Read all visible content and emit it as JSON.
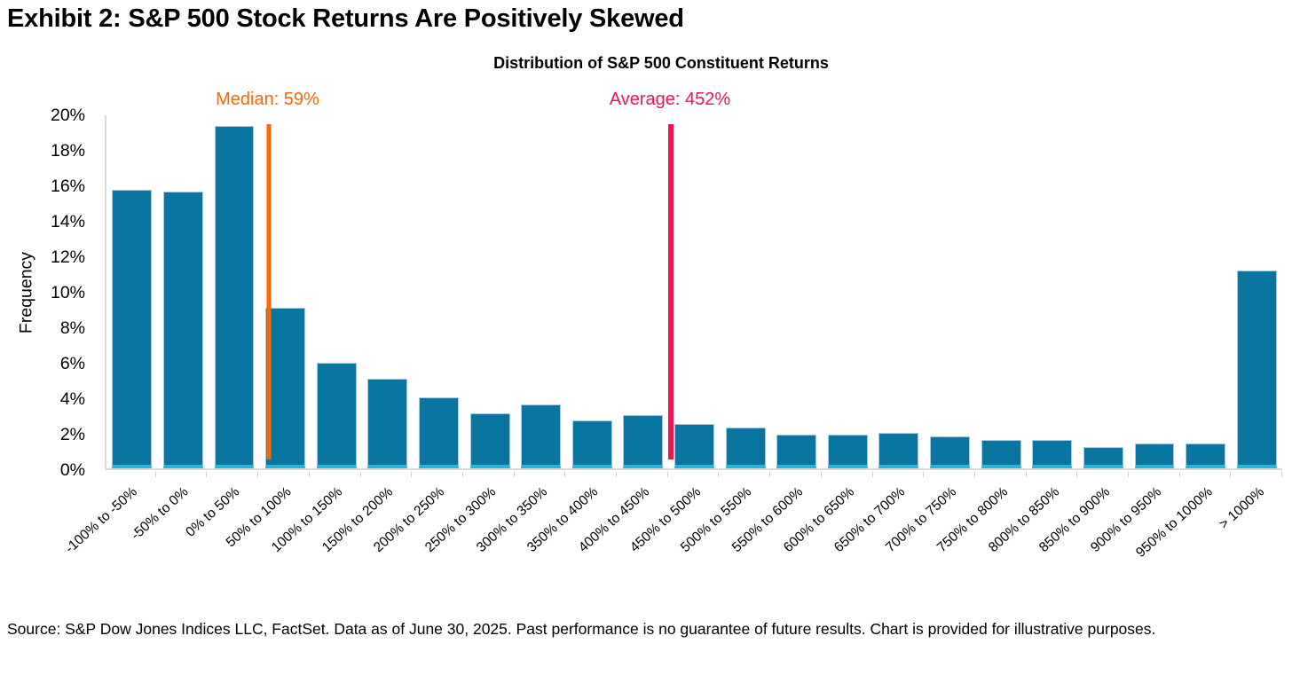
{
  "header": {
    "title": "Exhibit 2: S&P 500 Stock Returns Are Positively Skewed"
  },
  "chart_data": {
    "type": "bar",
    "title": "Distribution of S&P 500 Constituent Returns",
    "xlabel": "",
    "ylabel": "Frequency",
    "ylim": [
      0,
      20
    ],
    "ytick_step": 2,
    "ytick_suffix": "%",
    "grid": false,
    "legend": "none",
    "categories": [
      "-100% to -50%",
      "-50% to 0%",
      "0% to 50%",
      "50% to 100%",
      "100% to 150%",
      "150% to 200%",
      "200% to 250%",
      "250% to 300%",
      "300% to 350%",
      "350% to 400%",
      "400% to 450%",
      "450% to 500%",
      "500% to 550%",
      "550% to 600%",
      "600% to 650%",
      "650% to 700%",
      "700% to 750%",
      "750% to 800%",
      "800% to 850%",
      "850% to 900%",
      "900% to 950%",
      "950% to 1000%",
      "> 1000%"
    ],
    "values": [
      15.8,
      15.7,
      19.4,
      9.1,
      6.0,
      5.1,
      4.0,
      3.1,
      3.6,
      2.7,
      3.0,
      2.5,
      2.3,
      1.9,
      1.9,
      2.0,
      1.8,
      1.6,
      1.6,
      1.2,
      1.4,
      1.4,
      11.2
    ],
    "bucket_min": -100,
    "bucket_width": 50,
    "annotations": [
      {
        "name": "median",
        "label": "Median: 59%",
        "value": 59,
        "color": "#ff6600",
        "line_width": 5
      },
      {
        "name": "average",
        "label": "Average: 452%",
        "value": 452,
        "color": "#ee1550",
        "line_width": 6
      }
    ],
    "colors": {
      "bar_fill": "#0775a0",
      "bar_edge": "#a9cbde",
      "bar_bottom_edge": "#29b4d8",
      "axis_line": "#d9d9d9",
      "tick_mark": "#cfcfcf"
    }
  },
  "footer": {
    "source_text": "Source: S&P Dow Jones Indices LLC, FactSet. Data as of June 30, 2025. Past performance is no guarantee of future results. Chart is provided for illustrative purposes."
  }
}
